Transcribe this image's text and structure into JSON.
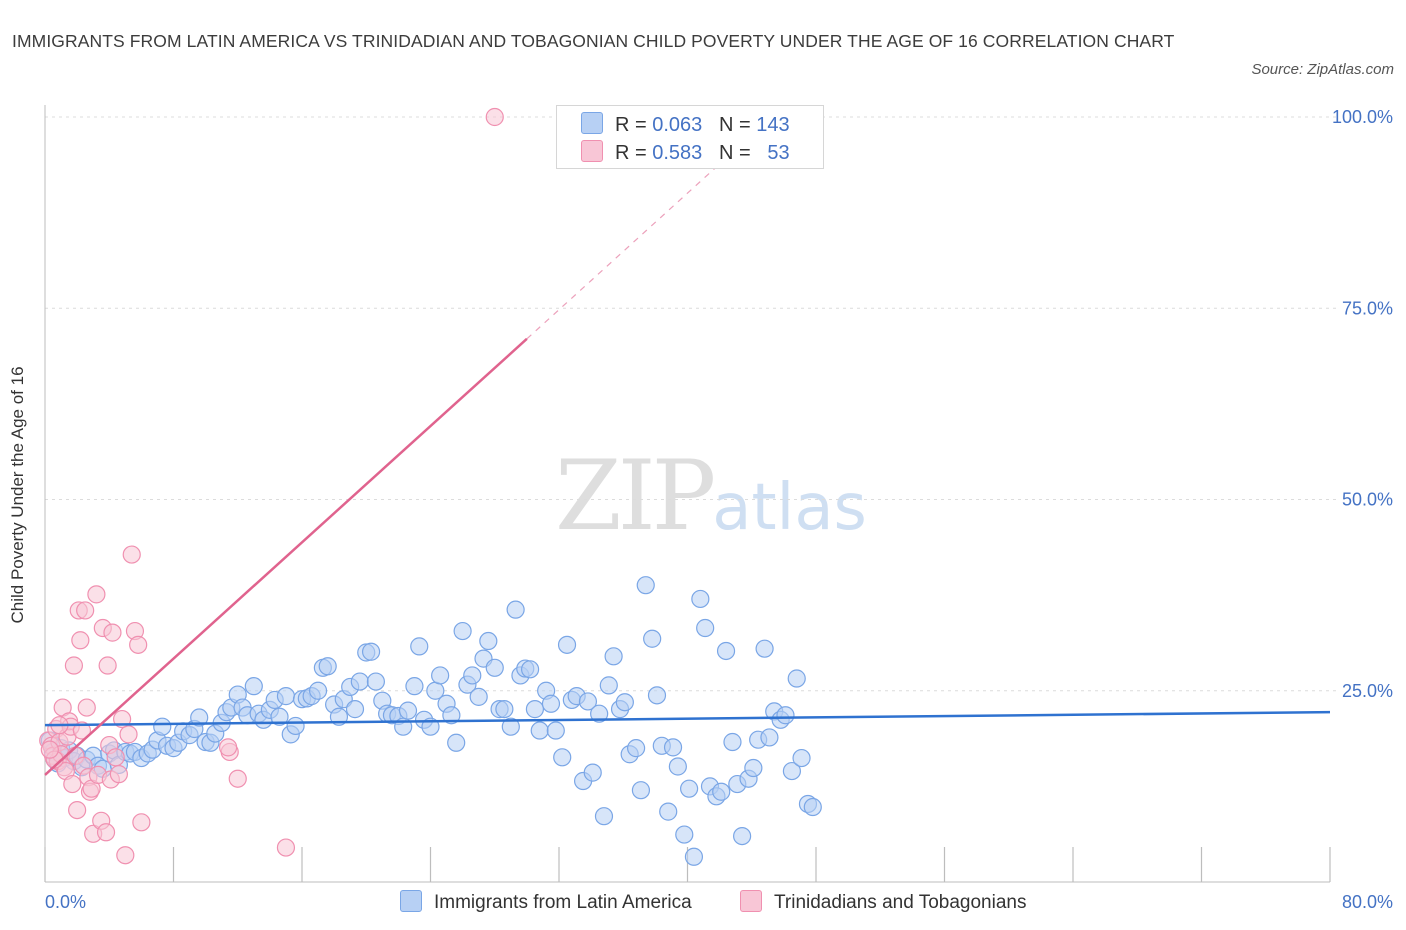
{
  "title": "IMMIGRANTS FROM LATIN AMERICA VS TRINIDADIAN AND TOBAGONIAN CHILD POVERTY UNDER THE AGE OF 16 CORRELATION CHART",
  "source": "Source: ZipAtlas.com",
  "watermark": {
    "zip": "ZIP",
    "atlas": "atlas"
  },
  "colors": {
    "blue": "#7aa6e6",
    "blue_fill": "#b7d0f4",
    "blue_line": "#2f72d0",
    "pink": "#f090b0",
    "pink_fill": "#f8c6d6",
    "pink_line": "#e0638e",
    "axis_text": "#4472c4"
  },
  "legend": {
    "rows": [
      {
        "r_label": "R =",
        "r_value": "0.063",
        "n_label": "N =",
        "n_value": "143"
      },
      {
        "r_label": "R =",
        "r_value": "0.583",
        "n_label": "N =",
        "n_value": "53"
      }
    ]
  },
  "chart_data": {
    "type": "scatter",
    "title": "IMMIGRANTS FROM LATIN AMERICA VS TRINIDADIAN AND TOBAGONIAN CHILD POVERTY UNDER THE AGE OF 16 CORRELATION CHART",
    "xlabel": "",
    "ylabel": "Child Poverty Under the Age of 16",
    "xlim": [
      0,
      80
    ],
    "ylim": [
      0,
      100
    ],
    "x_tick_labels": [
      "0.0%",
      "80.0%"
    ],
    "y_tick_labels": [
      "25.0%",
      "50.0%",
      "75.0%",
      "100.0%"
    ],
    "y_ticks": [
      25,
      50,
      75,
      100
    ],
    "grid": true,
    "legend_position": "bottom",
    "series": [
      {
        "name": "Immigrants from Latin America",
        "R": 0.063,
        "N": 143,
        "trend": {
          "x": [
            0,
            80
          ],
          "y": [
            20.5,
            22.2
          ]
        },
        "points": [
          [
            0.3,
            18.5
          ],
          [
            0.5,
            17
          ],
          [
            0.6,
            16
          ],
          [
            0.8,
            15.5
          ],
          [
            1,
            17.5
          ],
          [
            1.2,
            16.2
          ],
          [
            1.5,
            17.2
          ],
          [
            1.8,
            15.8
          ],
          [
            2,
            16.5
          ],
          [
            2.3,
            15
          ],
          [
            2.6,
            16
          ],
          [
            3,
            16.5
          ],
          [
            3.3,
            15.2
          ],
          [
            3.6,
            14.8
          ],
          [
            4,
            16.8
          ],
          [
            4.3,
            17.2
          ],
          [
            4.6,
            15.3
          ],
          [
            5,
            17
          ],
          [
            5.3,
            16.8
          ],
          [
            5.6,
            17
          ],
          [
            6,
            16.2
          ],
          [
            6.4,
            16.8
          ],
          [
            6.7,
            17.3
          ],
          [
            7,
            18.5
          ],
          [
            7.3,
            20.3
          ],
          [
            7.6,
            17.8
          ],
          [
            8,
            17.5
          ],
          [
            8.3,
            18.2
          ],
          [
            8.6,
            19.7
          ],
          [
            9,
            19.2
          ],
          [
            9.3,
            20
          ],
          [
            9.6,
            21.5
          ],
          [
            10,
            18.3
          ],
          [
            10.3,
            18.2
          ],
          [
            10.6,
            19.4
          ],
          [
            11,
            20.8
          ],
          [
            11.3,
            22.2
          ],
          [
            11.6,
            22.8
          ],
          [
            12,
            24.5
          ],
          [
            12.3,
            22.8
          ],
          [
            12.6,
            21.8
          ],
          [
            13,
            25.6
          ],
          [
            13.3,
            22
          ],
          [
            13.6,
            21.2
          ],
          [
            14,
            22.5
          ],
          [
            14.3,
            23.8
          ],
          [
            14.6,
            21.6
          ],
          [
            15,
            24.3
          ],
          [
            15.3,
            19.3
          ],
          [
            15.6,
            20.4
          ],
          [
            16,
            23.9
          ],
          [
            16.3,
            24
          ],
          [
            16.6,
            24.3
          ],
          [
            17,
            25
          ],
          [
            17.3,
            28
          ],
          [
            17.6,
            28.2
          ],
          [
            18,
            23.2
          ],
          [
            18.3,
            21.6
          ],
          [
            18.6,
            23.9
          ],
          [
            19,
            25.5
          ],
          [
            19.3,
            22.6
          ],
          [
            19.6,
            26.2
          ],
          [
            20,
            30
          ],
          [
            20.3,
            30.1
          ],
          [
            20.6,
            26.2
          ],
          [
            21,
            23.7
          ],
          [
            21.3,
            22
          ],
          [
            21.6,
            21.8
          ],
          [
            22,
            21.7
          ],
          [
            22.3,
            20.3
          ],
          [
            22.6,
            22.4
          ],
          [
            23,
            25.6
          ],
          [
            23.3,
            30.8
          ],
          [
            23.6,
            21.2
          ],
          [
            24,
            20.3
          ],
          [
            24.3,
            25
          ],
          [
            24.6,
            27
          ],
          [
            25,
            23.3
          ],
          [
            25.3,
            21.8
          ],
          [
            25.6,
            18.2
          ],
          [
            26,
            32.8
          ],
          [
            26.3,
            25.8
          ],
          [
            26.6,
            27
          ],
          [
            27,
            24.2
          ],
          [
            27.3,
            29.2
          ],
          [
            27.6,
            31.5
          ],
          [
            28,
            28
          ],
          [
            28.3,
            22.6
          ],
          [
            28.6,
            22.6
          ],
          [
            29,
            20.3
          ],
          [
            29.3,
            35.6
          ],
          [
            29.6,
            27
          ],
          [
            29.9,
            27.9
          ],
          [
            30.2,
            27.8
          ],
          [
            30.5,
            22.6
          ],
          [
            30.8,
            19.8
          ],
          [
            31.2,
            25
          ],
          [
            31.5,
            23.3
          ],
          [
            31.8,
            19.8
          ],
          [
            32.2,
            16.3
          ],
          [
            32.5,
            31
          ],
          [
            32.8,
            23.8
          ],
          [
            33.1,
            24.3
          ],
          [
            33.5,
            13.2
          ],
          [
            33.8,
            23.6
          ],
          [
            34.1,
            14.3
          ],
          [
            34.5,
            22
          ],
          [
            34.8,
            8.6
          ],
          [
            35.1,
            25.7
          ],
          [
            35.4,
            29.5
          ],
          [
            35.8,
            22.6
          ],
          [
            36.1,
            23.5
          ],
          [
            36.4,
            16.7
          ],
          [
            36.8,
            17.5
          ],
          [
            37.1,
            12
          ],
          [
            37.4,
            38.8
          ],
          [
            37.8,
            31.8
          ],
          [
            38.1,
            24.4
          ],
          [
            38.4,
            17.8
          ],
          [
            38.8,
            9.2
          ],
          [
            39.1,
            17.6
          ],
          [
            39.4,
            15.1
          ],
          [
            39.8,
            6.2
          ],
          [
            40.1,
            12.2
          ],
          [
            40.4,
            3.3
          ],
          [
            40.8,
            37
          ],
          [
            41.1,
            33.2
          ],
          [
            41.4,
            12.5
          ],
          [
            41.8,
            11.2
          ],
          [
            42.1,
            11.8
          ],
          [
            42.4,
            30.2
          ],
          [
            42.8,
            18.3
          ],
          [
            43.1,
            12.8
          ],
          [
            43.4,
            6
          ],
          [
            43.8,
            13.5
          ],
          [
            44.1,
            14.9
          ],
          [
            44.4,
            18.6
          ],
          [
            44.8,
            30.5
          ],
          [
            45.1,
            18.9
          ],
          [
            45.4,
            22.3
          ],
          [
            45.8,
            21.2
          ],
          [
            46.1,
            21.8
          ],
          [
            46.5,
            14.5
          ],
          [
            46.8,
            26.6
          ],
          [
            47.1,
            16.2
          ],
          [
            47.5,
            10.2
          ],
          [
            47.8,
            9.8
          ]
        ]
      },
      {
        "name": "Trinidadians and Tobagonians",
        "R": 0.583,
        "N": 53,
        "trend": {
          "x": [
            0,
            30
          ],
          "y": [
            14,
            71
          ]
        },
        "trend_dashed": {
          "x": [
            30,
            42.6
          ],
          "y": [
            71,
            95
          ]
        },
        "points": [
          [
            0.2,
            18.5
          ],
          [
            0.4,
            17.8
          ],
          [
            0.5,
            16.5
          ],
          [
            0.7,
            20
          ],
          [
            0.8,
            15.8
          ],
          [
            0.9,
            18.3
          ],
          [
            1,
            16.7
          ],
          [
            1.1,
            22.8
          ],
          [
            1.2,
            15
          ],
          [
            1.3,
            14.5
          ],
          [
            1.4,
            19
          ],
          [
            1.5,
            21
          ],
          [
            1.6,
            20.3
          ],
          [
            1.7,
            12.8
          ],
          [
            1.8,
            28.3
          ],
          [
            1.9,
            16.5
          ],
          [
            2,
            9.4
          ],
          [
            2.1,
            35.5
          ],
          [
            2.2,
            31.6
          ],
          [
            2.3,
            19.8
          ],
          [
            2.4,
            15.2
          ],
          [
            2.5,
            35.5
          ],
          [
            2.6,
            22.8
          ],
          [
            2.7,
            13.7
          ],
          [
            2.8,
            11.8
          ],
          [
            2.9,
            12.2
          ],
          [
            3,
            6.3
          ],
          [
            3.2,
            37.6
          ],
          [
            3.3,
            14
          ],
          [
            3.5,
            8
          ],
          [
            3.6,
            33.2
          ],
          [
            3.8,
            6.5
          ],
          [
            3.9,
            28.3
          ],
          [
            4,
            17.9
          ],
          [
            4.1,
            13.4
          ],
          [
            4.2,
            32.6
          ],
          [
            4.4,
            16.3
          ],
          [
            4.6,
            14.1
          ],
          [
            4.8,
            21.3
          ],
          [
            5,
            3.5
          ],
          [
            5.2,
            19.3
          ],
          [
            5.4,
            42.8
          ],
          [
            5.6,
            32.8
          ],
          [
            5.8,
            31
          ],
          [
            6,
            7.8
          ],
          [
            12,
            13.5
          ],
          [
            11.5,
            17
          ],
          [
            11.4,
            17.6
          ],
          [
            15,
            4.5
          ],
          [
            28,
            100
          ],
          [
            0.6,
            16
          ],
          [
            0.3,
            17.3
          ],
          [
            0.9,
            20.5
          ]
        ]
      }
    ]
  },
  "bottom_legend": {
    "items": [
      {
        "label": "Immigrants from Latin America"
      },
      {
        "label": "Trinidadians and Tobagonians"
      }
    ]
  }
}
